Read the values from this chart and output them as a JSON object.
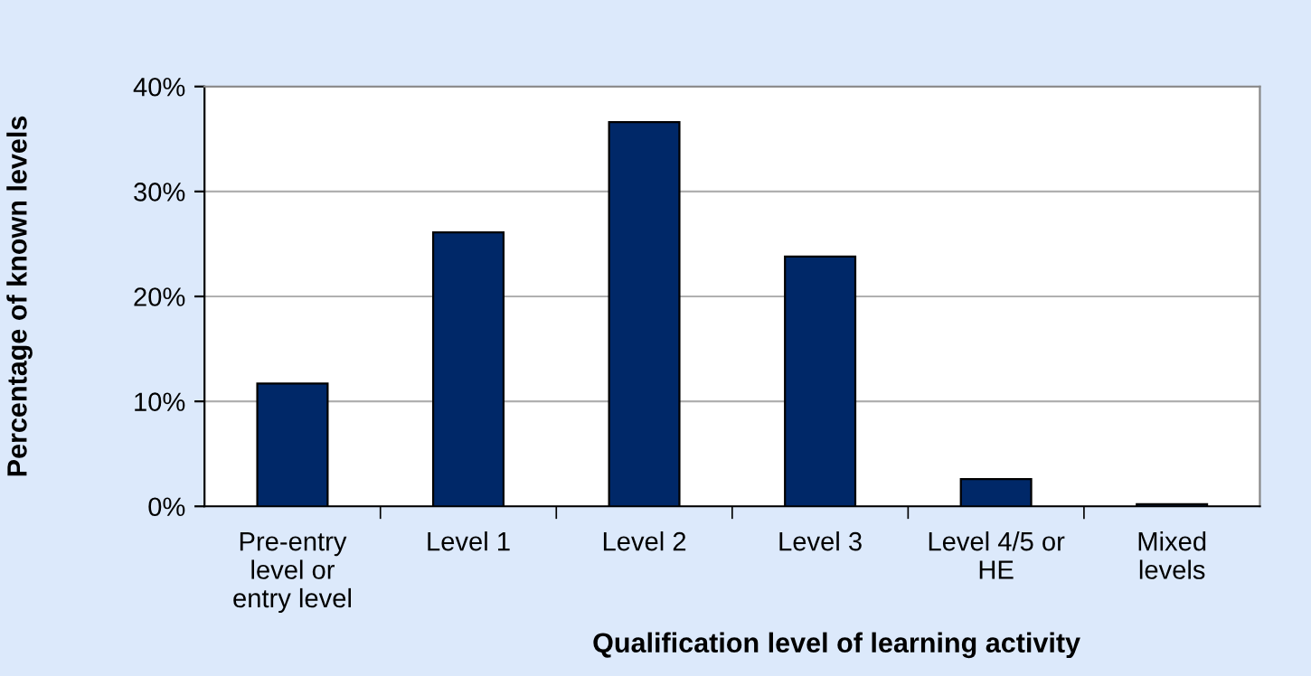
{
  "chart_data": {
    "type": "bar",
    "xlabel": "Qualification level of learning activity",
    "ylabel": "Percentage of known levels",
    "categories": [
      "Pre-entry\nlevel or\nentry level",
      "Level 1",
      "Level 2",
      "Level 3",
      "Level 4/5 or\nHE",
      "Mixed\nlevels"
    ],
    "values": [
      11.7,
      26.1,
      36.6,
      23.8,
      2.6,
      0.2
    ],
    "color": "#002868",
    "ylim": [
      0,
      40
    ],
    "yticks": [
      {
        "value": 0,
        "label": "0%"
      },
      {
        "value": 10,
        "label": "10%"
      },
      {
        "value": 20,
        "label": "20%"
      },
      {
        "value": 30,
        "label": "30%"
      },
      {
        "value": 40,
        "label": "40%"
      }
    ],
    "grid": "y",
    "legend": false
  }
}
